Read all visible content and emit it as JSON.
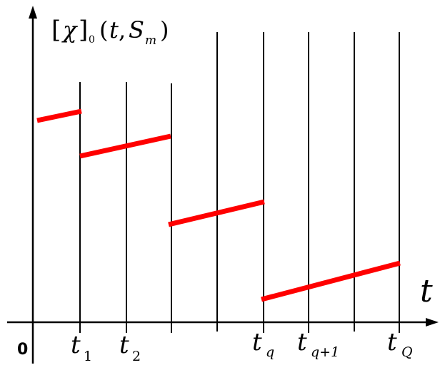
{
  "diagram": {
    "y_label": {
      "bracket_open": "[",
      "chi": "χ",
      "bracket_close": "]",
      "subscript": "0",
      "args_open": "(",
      "t": "t",
      "comma": ",",
      "S": "S",
      "m": "m",
      "args_close": ")"
    },
    "x_axis_label": "t",
    "origin_label": "0",
    "tick_labels": [
      {
        "base": "t",
        "sub": "1"
      },
      {
        "base": "t",
        "sub": "2"
      },
      {
        "base": "t",
        "sub": "q"
      },
      {
        "base": "t",
        "sub": "q+1"
      },
      {
        "base": "t",
        "sub": "Q"
      }
    ],
    "colors": {
      "axis": "#000000",
      "segments": "#ff0000"
    }
  }
}
